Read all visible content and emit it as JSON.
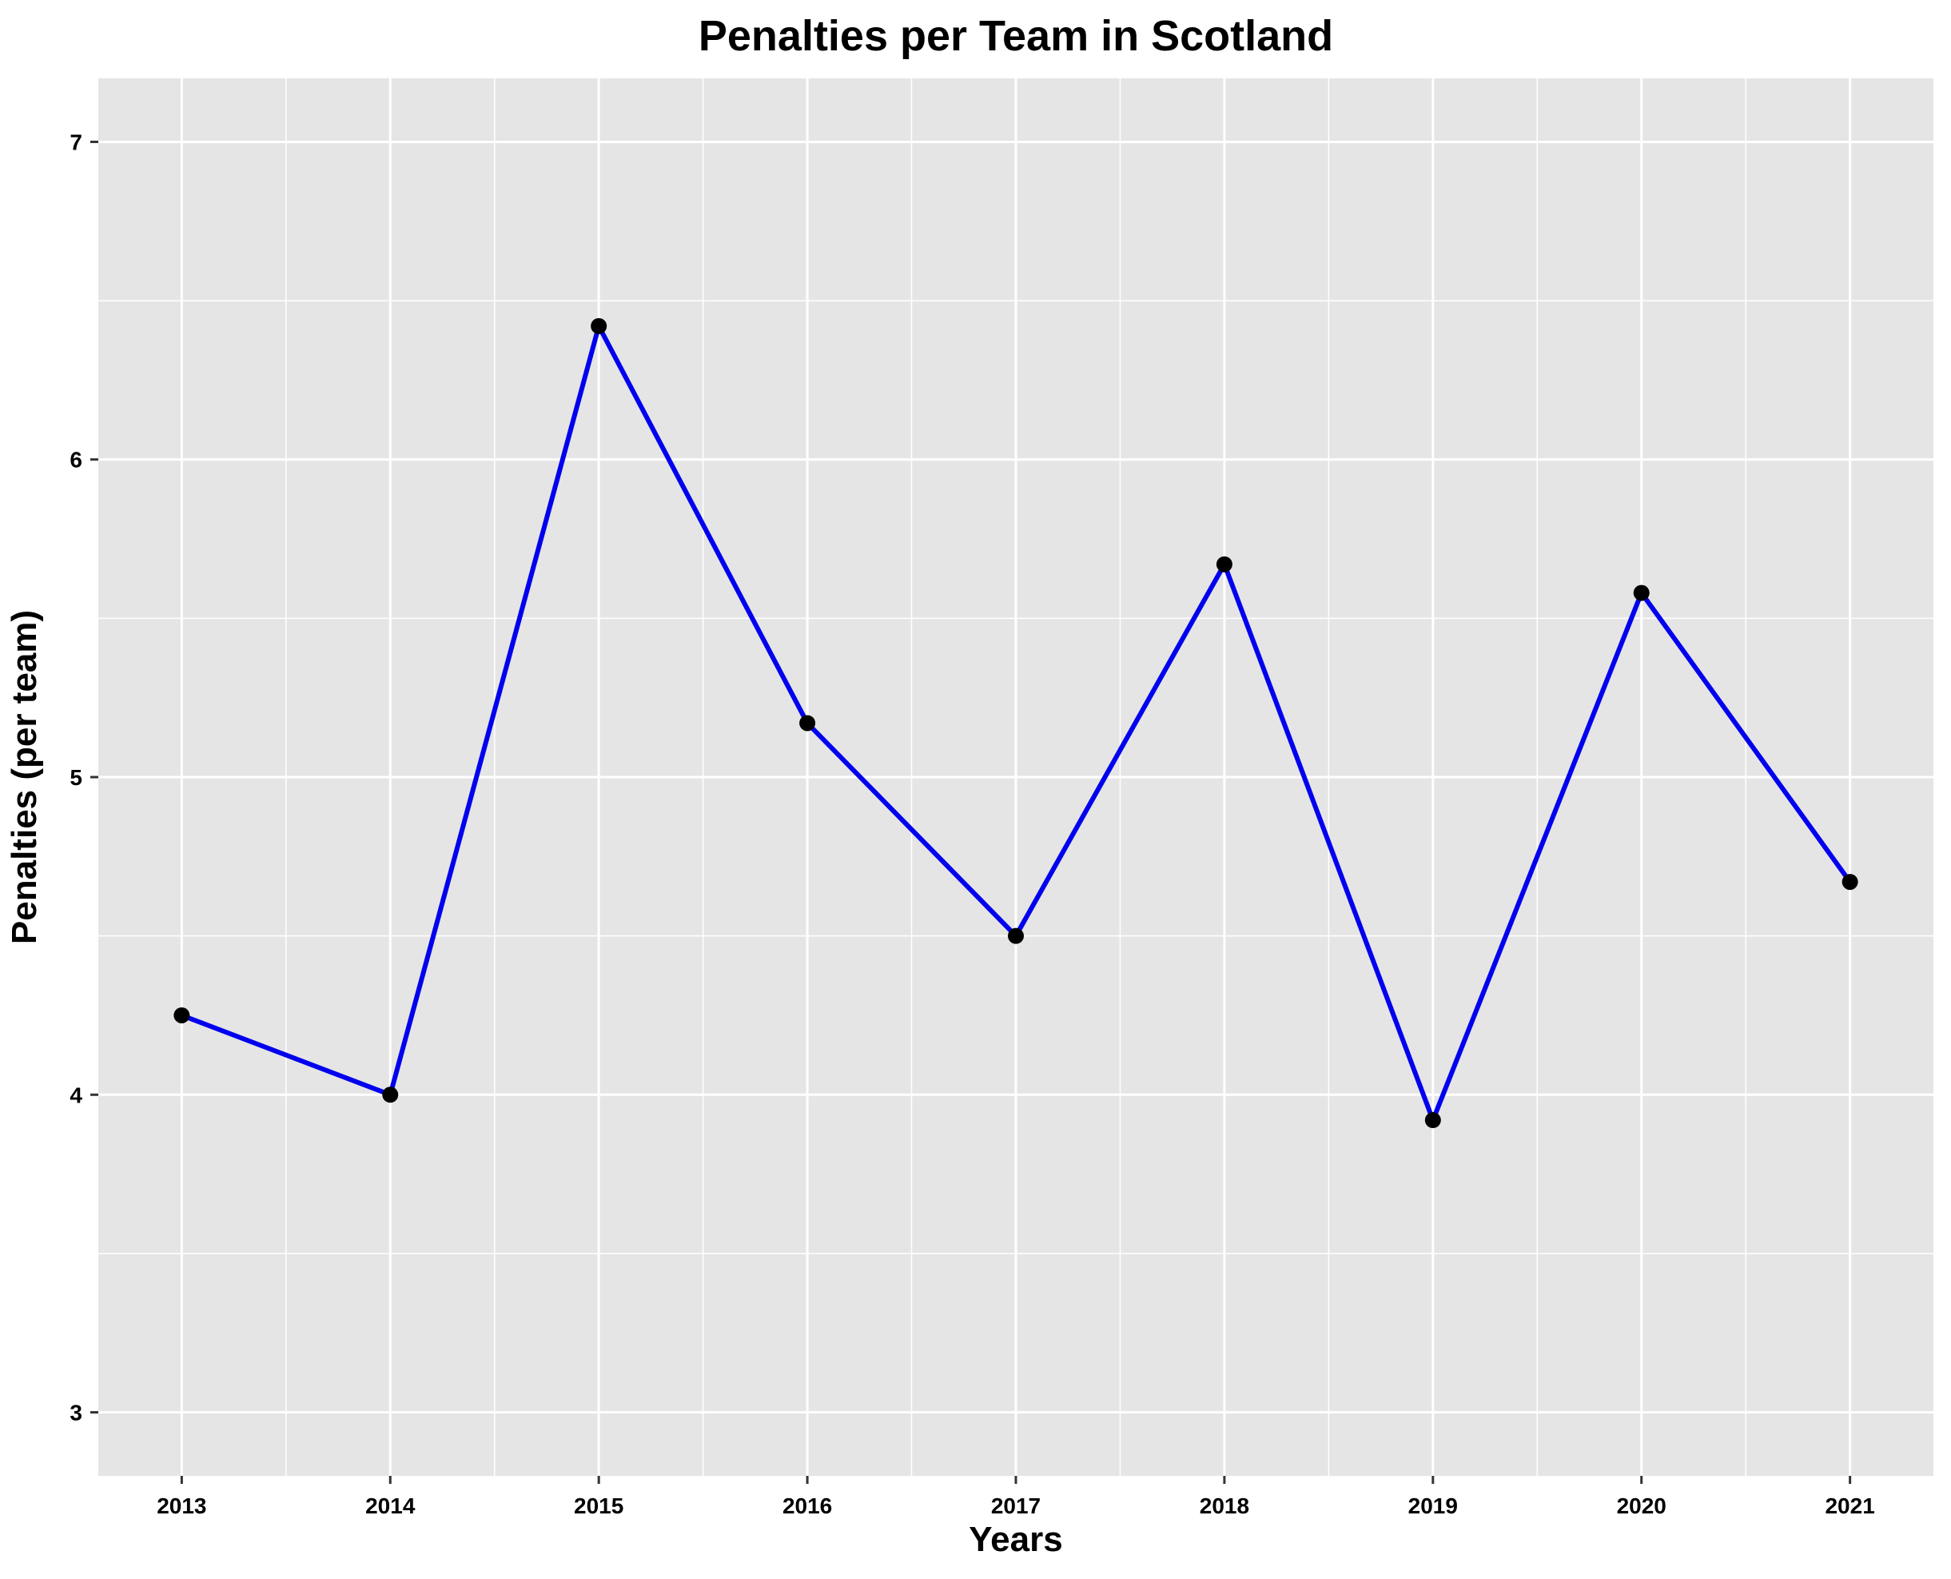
{
  "chart_data": {
    "type": "line",
    "title": "Penalties per Team in Scotland",
    "xlabel": "Years",
    "ylabel": "Penalties (per team)",
    "x": [
      "2013",
      "2014",
      "2015",
      "2016",
      "2017",
      "2018",
      "2019",
      "2020",
      "2021"
    ],
    "y": [
      4.25,
      4.0,
      6.42,
      5.17,
      4.5,
      5.67,
      3.92,
      5.58,
      4.67
    ],
    "ylim": [
      2.8,
      7.2
    ],
    "y_ticks": [
      3,
      4,
      5,
      6,
      7
    ],
    "grid": true,
    "legend": "none",
    "colors": {
      "line": "#0000ee",
      "point": "#000000",
      "panel": "#e5e5e5",
      "grid": "#ffffff"
    }
  }
}
